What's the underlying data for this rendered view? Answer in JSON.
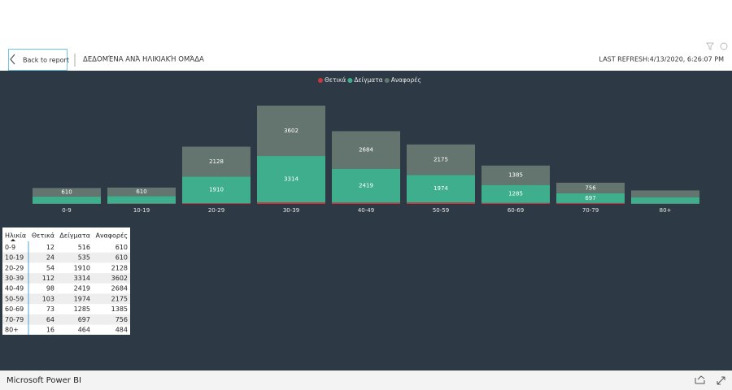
{
  "header": {
    "back": "Back to report",
    "title": "ΔΕΔΟΜΈΝΑ ΑΝΆ ΗΛΙΚΙΑΚΉ ΟΜΆΔΑ",
    "refresh": "LAST REFRESH:4/13/2020, 6:26:07 PM"
  },
  "chart_data": {
    "type": "bar",
    "stacked": true,
    "legend": "top",
    "categories": [
      "0-9",
      "10-19",
      "20-29",
      "30-39",
      "40-49",
      "50-59",
      "60-69",
      "70-79",
      "80+"
    ],
    "series": [
      {
        "name": "Θετικά",
        "color": "#c8373f",
        "values": [
          12,
          24,
          54,
          112,
          98,
          103,
          73,
          64,
          16
        ]
      },
      {
        "name": "Δείγματα",
        "color": "#3fae8c",
        "values": [
          516,
          535,
          1910,
          3314,
          2419,
          1974,
          1285,
          697,
          464
        ]
      },
      {
        "name": "Αναφορές",
        "color": "#64756f",
        "values": [
          610,
          610,
          2128,
          3602,
          2684,
          2175,
          1385,
          756,
          484
        ]
      }
    ]
  },
  "table": {
    "first_header": "Ηλικία"
  },
  "footer": {
    "brand": "Microsoft Power BI"
  }
}
